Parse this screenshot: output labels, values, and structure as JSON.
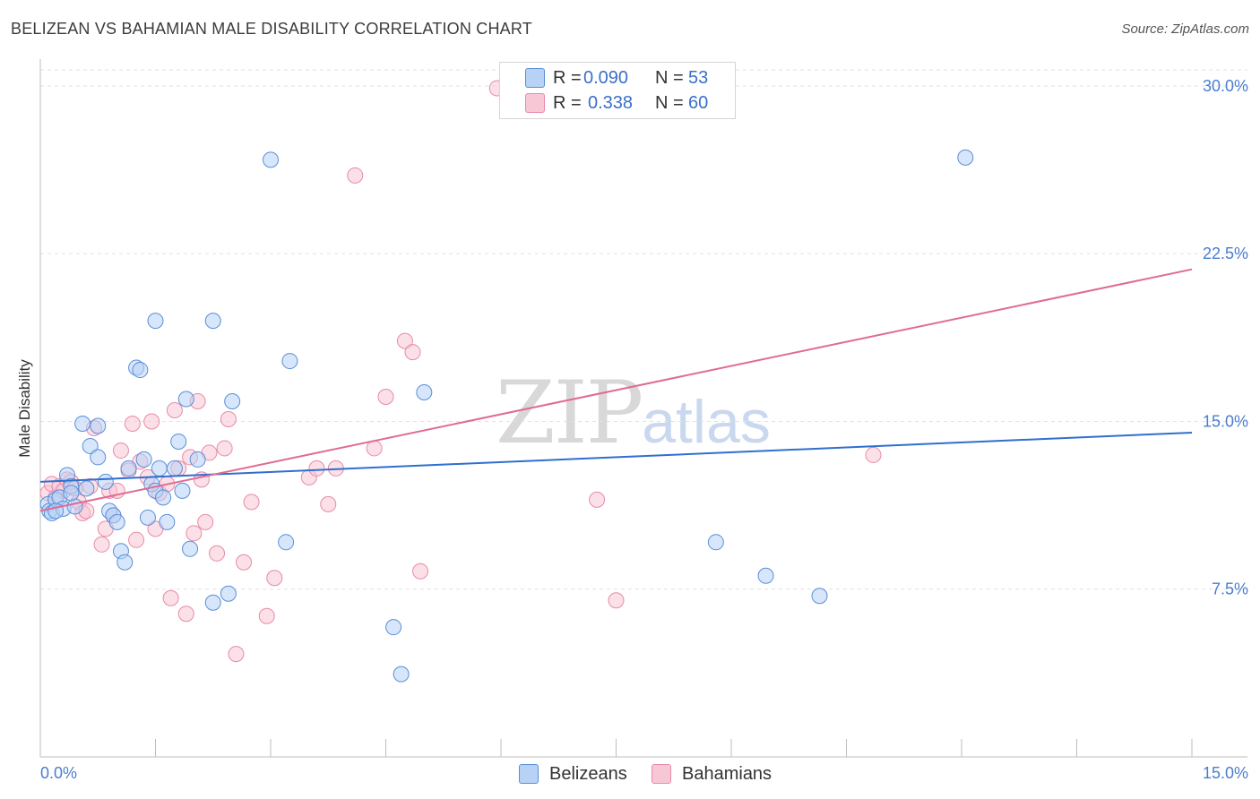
{
  "header": {
    "title": "BELIZEAN VS BAHAMIAN MALE DISABILITY CORRELATION CHART",
    "source": "Source: ZipAtlas.com"
  },
  "watermark": {
    "zip": "ZIP",
    "atlas": "atlas"
  },
  "legend_top": {
    "rows": [
      {
        "r_label": "R =",
        "r_value": "0.090",
        "n_label": "N =",
        "n_value": "53"
      },
      {
        "r_label": "R =",
        "r_value": "0.338",
        "n_label": "N =",
        "n_value": "60"
      }
    ]
  },
  "legend_bottom": {
    "items": [
      "Belizeans",
      "Bahamians"
    ]
  },
  "colors": {
    "blue_fill": "#b7d2f5",
    "blue_stroke": "#5a8fd8",
    "blue_line": "#2f6fcf",
    "pink_fill": "#f8c7d6",
    "pink_stroke": "#e88aa9",
    "pink_line": "#e06b94",
    "tick_text": "#4a7dd0",
    "grid": "#e2e2e2"
  },
  "chart_data": {
    "type": "scatter",
    "title": "BELIZEAN VS BAHAMIAN MALE DISABILITY CORRELATION CHART",
    "xlabel": "",
    "ylabel": "Male Disability",
    "xlim": [
      0,
      15
    ],
    "ylim": [
      0,
      31.2
    ],
    "x_tick_labels": [
      "0.0%",
      "15.0%"
    ],
    "y_ticks": [
      7.5,
      15.0,
      22.5,
      30.0
    ],
    "y_tick_labels": [
      "7.5%",
      "15.0%",
      "22.5%",
      "30.0%"
    ],
    "grid": "horizontal dashed",
    "legend_placement": "top-center and bottom-center",
    "series": [
      {
        "name": "Belizeans",
        "R": 0.09,
        "N": 53,
        "trend": {
          "x": [
            0,
            15
          ],
          "y": [
            12.3,
            14.5
          ]
        },
        "points": [
          [
            0.1,
            11.3
          ],
          [
            0.12,
            11.0
          ],
          [
            0.15,
            10.9
          ],
          [
            0.2,
            11.5
          ],
          [
            0.25,
            11.6
          ],
          [
            0.3,
            11.1
          ],
          [
            0.35,
            12.6
          ],
          [
            0.4,
            12.1
          ],
          [
            0.45,
            11.2
          ],
          [
            0.55,
            14.9
          ],
          [
            0.65,
            13.9
          ],
          [
            0.75,
            14.8
          ],
          [
            0.75,
            13.4
          ],
          [
            0.85,
            12.3
          ],
          [
            0.9,
            11.0
          ],
          [
            0.95,
            10.8
          ],
          [
            1.0,
            10.5
          ],
          [
            1.05,
            9.2
          ],
          [
            1.1,
            8.7
          ],
          [
            1.15,
            12.9
          ],
          [
            1.25,
            17.4
          ],
          [
            1.3,
            17.3
          ],
          [
            1.35,
            13.3
          ],
          [
            1.4,
            10.7
          ],
          [
            1.45,
            12.2
          ],
          [
            1.5,
            11.9
          ],
          [
            1.5,
            19.5
          ],
          [
            1.55,
            12.9
          ],
          [
            1.6,
            11.6
          ],
          [
            1.65,
            10.5
          ],
          [
            1.75,
            12.9
          ],
          [
            1.8,
            14.1
          ],
          [
            1.85,
            11.9
          ],
          [
            1.9,
            16.0
          ],
          [
            1.95,
            9.3
          ],
          [
            2.05,
            13.3
          ],
          [
            2.25,
            19.5
          ],
          [
            2.25,
            6.9
          ],
          [
            2.45,
            7.3
          ],
          [
            2.5,
            15.9
          ],
          [
            3.0,
            26.7
          ],
          [
            3.2,
            9.6
          ],
          [
            3.25,
            17.7
          ],
          [
            4.6,
            5.8
          ],
          [
            4.7,
            3.7
          ],
          [
            5.0,
            16.3
          ],
          [
            8.8,
            9.6
          ],
          [
            9.45,
            8.1
          ],
          [
            10.15,
            7.2
          ],
          [
            12.05,
            26.8
          ],
          [
            0.6,
            12.0
          ],
          [
            0.2,
            11.0
          ],
          [
            0.4,
            11.8
          ]
        ]
      },
      {
        "name": "Bahamians",
        "R": 0.338,
        "N": 60,
        "trend": {
          "x": [
            0,
            15
          ],
          "y": [
            11.0,
            21.8
          ]
        },
        "points": [
          [
            0.1,
            11.8
          ],
          [
            0.15,
            12.2
          ],
          [
            0.2,
            11.6
          ],
          [
            0.25,
            12.1
          ],
          [
            0.3,
            11.9
          ],
          [
            0.35,
            12.4
          ],
          [
            0.45,
            12.0
          ],
          [
            0.5,
            11.4
          ],
          [
            0.55,
            10.9
          ],
          [
            0.65,
            12.1
          ],
          [
            0.7,
            14.7
          ],
          [
            0.8,
            9.5
          ],
          [
            0.85,
            10.2
          ],
          [
            0.9,
            11.9
          ],
          [
            0.95,
            10.8
          ],
          [
            1.05,
            13.7
          ],
          [
            1.15,
            12.8
          ],
          [
            1.2,
            14.9
          ],
          [
            1.25,
            9.7
          ],
          [
            1.3,
            13.2
          ],
          [
            1.4,
            12.5
          ],
          [
            1.45,
            15.0
          ],
          [
            1.5,
            10.2
          ],
          [
            1.55,
            11.8
          ],
          [
            1.65,
            12.2
          ],
          [
            1.7,
            7.1
          ],
          [
            1.75,
            15.5
          ],
          [
            1.8,
            12.9
          ],
          [
            1.9,
            6.4
          ],
          [
            1.95,
            13.4
          ],
          [
            2.0,
            10.0
          ],
          [
            2.05,
            15.9
          ],
          [
            2.15,
            10.5
          ],
          [
            2.2,
            13.6
          ],
          [
            2.3,
            9.1
          ],
          [
            2.4,
            13.8
          ],
          [
            2.45,
            15.1
          ],
          [
            2.55,
            4.6
          ],
          [
            2.65,
            8.7
          ],
          [
            2.75,
            11.4
          ],
          [
            2.95,
            6.3
          ],
          [
            3.05,
            8.0
          ],
          [
            3.5,
            12.5
          ],
          [
            3.6,
            12.9
          ],
          [
            3.75,
            11.3
          ],
          [
            3.85,
            12.9
          ],
          [
            4.1,
            26.0
          ],
          [
            4.35,
            13.8
          ],
          [
            4.5,
            16.1
          ],
          [
            4.75,
            18.6
          ],
          [
            4.85,
            18.1
          ],
          [
            4.95,
            8.3
          ],
          [
            5.95,
            29.9
          ],
          [
            7.25,
            11.5
          ],
          [
            7.5,
            7.0
          ],
          [
            10.85,
            13.5
          ],
          [
            0.4,
            12.3
          ],
          [
            0.6,
            11.0
          ],
          [
            1.0,
            11.9
          ],
          [
            2.1,
            12.4
          ]
        ]
      }
    ]
  }
}
